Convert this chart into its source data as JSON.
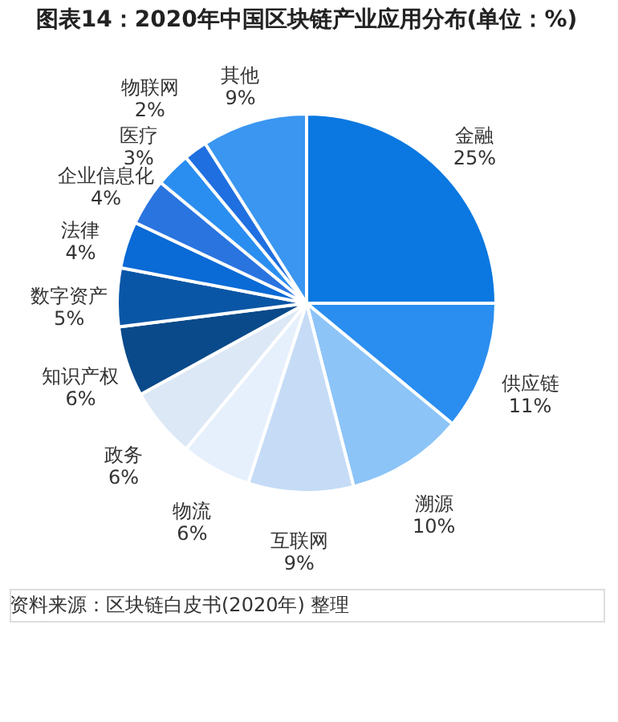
{
  "chart_data": {
    "type": "pie",
    "title": "图表14：2020年中国区块链产业应用分布(单位：%)",
    "categories": [
      "金融",
      "供应链",
      "溯源",
      "互联网",
      "物流",
      "政务",
      "知识产权",
      "数字资产",
      "法律",
      "企业信息化",
      "医疗",
      "物联网",
      "其他"
    ],
    "values": [
      25,
      11,
      10,
      9,
      6,
      6,
      6,
      5,
      4,
      4,
      3,
      2,
      9
    ],
    "value_labels": [
      "25%",
      "11%",
      "10%",
      "9%",
      "6%",
      "6%",
      "6%",
      "5%",
      "4%",
      "4%",
      "3%",
      "2%",
      "9%"
    ],
    "colors": [
      "#0a78e0",
      "#2a8ef0",
      "#8cc4f8",
      "#c6dcf6",
      "#e6f0fc",
      "#dce8f6",
      "#0a4a8a",
      "#0a56a6",
      "#0a6ad6",
      "#2a74e0",
      "#2a8ef0",
      "#1f6fe0",
      "#3a96f0"
    ],
    "annotations": [
      "资料来源：区块链白皮书(2020年) 整理"
    ]
  }
}
